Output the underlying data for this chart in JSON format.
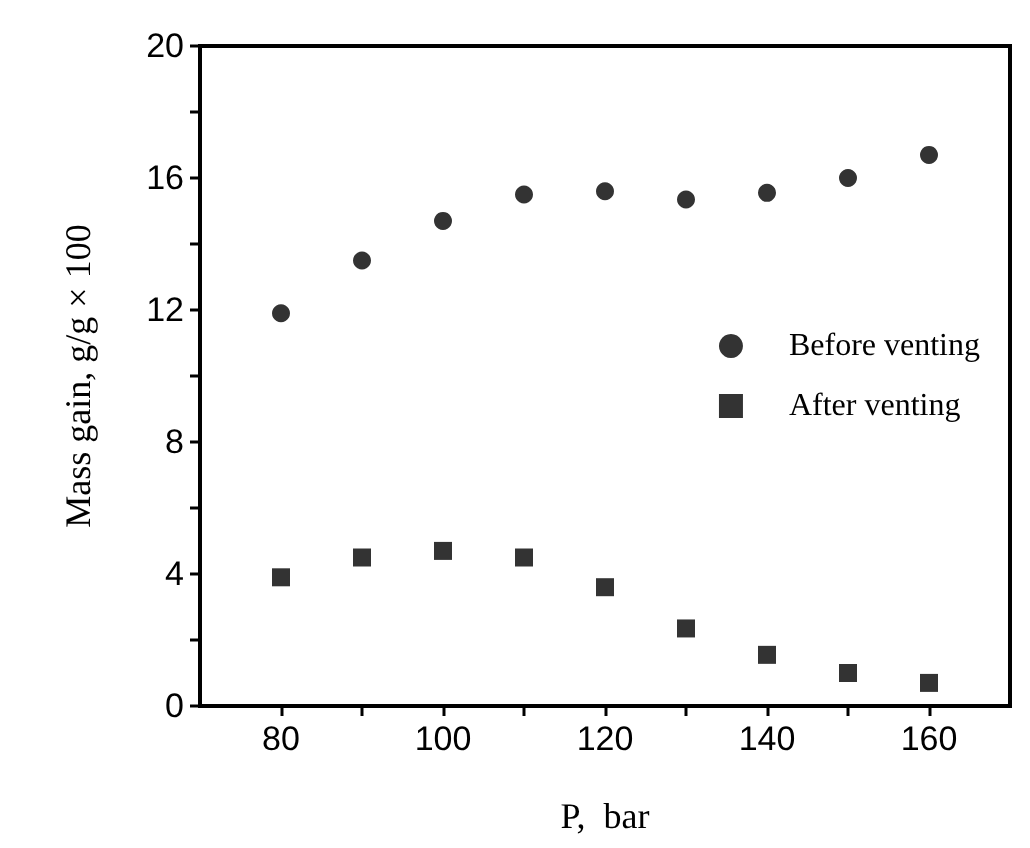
{
  "chart_data": {
    "type": "scatter",
    "xlabel": "P,  bar",
    "ylabel": "Mass gain, g/g × 100",
    "x": [
      80,
      90,
      100,
      110,
      120,
      130,
      140,
      150,
      160
    ],
    "series": [
      {
        "name": "Before venting",
        "color": "#000000",
        "marker": "circle",
        "values": [
          11.9,
          13.5,
          14.7,
          15.5,
          15.6,
          15.35,
          15.55,
          16.0,
          16.7
        ]
      },
      {
        "name": "After venting",
        "color": "#000000",
        "marker": "square",
        "values": [
          3.9,
          4.5,
          4.7,
          4.5,
          3.6,
          2.35,
          1.55,
          1.0,
          0.7
        ]
      }
    ],
    "xlim": [
      70,
      170
    ],
    "xticks": [
      80,
      {
        "value": 90,
        "label": null
      },
      100,
      {
        "value": 110,
        "label": null
      },
      120,
      {
        "value": 130,
        "label": null
      },
      140,
      {
        "value": 150,
        "label": null
      },
      160
    ],
    "ylim": [
      0,
      20
    ],
    "yticks": [
      0,
      {
        "value": 2,
        "label": null
      },
      4,
      {
        "value": 6,
        "label": null
      },
      8,
      {
        "value": 10,
        "label": null
      },
      12,
      {
        "value": 14,
        "label": null
      },
      16,
      {
        "value": 18,
        "label": null
      },
      20
    ],
    "grid": false,
    "legend": "right"
  }
}
